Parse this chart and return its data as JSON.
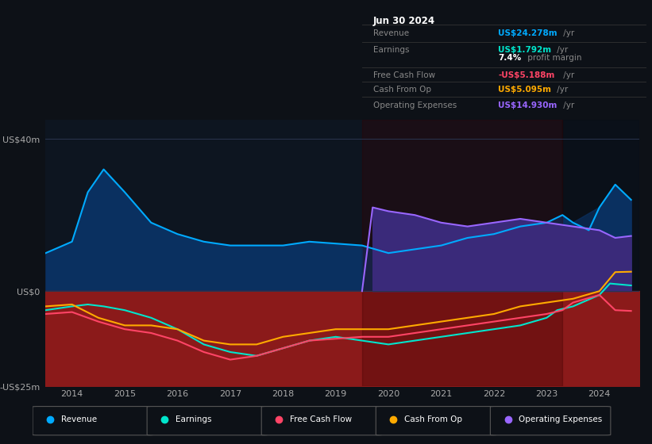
{
  "bg_color": "#0d1117",
  "plot_bg_color": "#0d1520",
  "grid_color": "#2a3550",
  "ylim": [
    -25,
    45
  ],
  "xlim_start": 2013.5,
  "xlim_end": 2024.75,
  "yticks": [
    -25,
    0,
    40
  ],
  "ytick_labels": [
    "-US$25m",
    "US$0",
    "US$40m"
  ],
  "xtick_years": [
    2014,
    2015,
    2016,
    2017,
    2018,
    2019,
    2020,
    2021,
    2022,
    2023,
    2024
  ],
  "revenue_color": "#00aaff",
  "revenue_fill": "#0a3060",
  "earnings_color": "#00e5cc",
  "freecashflow_color": "#ff4466",
  "cashfromop_color": "#ffaa00",
  "opex_color": "#9966ff",
  "opex_fill": "#3a2a7a",
  "red_fill": "#8b1a1a",
  "info_box_bg": "#000000",
  "info_box_title": "Jun 30 2024",
  "info_revenue_label": "Revenue",
  "info_revenue_value": "US$24.278m",
  "info_revenue_color": "#00aaff",
  "info_earnings_label": "Earnings",
  "info_earnings_value": "US$1.792m",
  "info_earnings_color": "#00e5cc",
  "info_margin_text": "7.4% profit margin",
  "info_fcf_label": "Free Cash Flow",
  "info_fcf_value": "-US$5.188m",
  "info_fcf_color": "#ff4466",
  "info_cashop_label": "Cash From Op",
  "info_cashop_value": "US$5.095m",
  "info_cashop_color": "#ffaa00",
  "info_opex_label": "Operating Expenses",
  "info_opex_value": "US$14.930m",
  "info_opex_color": "#9966ff",
  "revenue_x": [
    2013.5,
    2014.0,
    2014.3,
    2014.6,
    2015.0,
    2015.5,
    2016.0,
    2016.5,
    2017.0,
    2017.5,
    2018.0,
    2018.5,
    2019.0,
    2019.5,
    2020.0,
    2020.5,
    2021.0,
    2021.5,
    2022.0,
    2022.5,
    2023.0,
    2023.3,
    2023.5,
    2023.8,
    2024.0,
    2024.3,
    2024.6
  ],
  "revenue_y": [
    10,
    13,
    26,
    32,
    26,
    18,
    15,
    13,
    12,
    12,
    12,
    13,
    12.5,
    12,
    10,
    11,
    12,
    14,
    15,
    17,
    18,
    20,
    18,
    16,
    22,
    28,
    24
  ],
  "earnings_x": [
    2013.5,
    2014.0,
    2014.3,
    2014.6,
    2015.0,
    2015.5,
    2016.0,
    2016.5,
    2017.0,
    2017.5,
    2018.0,
    2018.5,
    2019.0,
    2019.5,
    2020.0,
    2020.5,
    2021.0,
    2021.5,
    2022.0,
    2022.5,
    2023.0,
    2023.2,
    2023.5,
    2024.0,
    2024.2,
    2024.6
  ],
  "earnings_y": [
    -5,
    -4,
    -3.5,
    -4,
    -5,
    -7,
    -10,
    -14,
    -16,
    -17,
    -15,
    -13,
    -12,
    -13,
    -14,
    -13,
    -12,
    -11,
    -10,
    -9,
    -7,
    -5,
    -4,
    -1,
    2,
    1.5
  ],
  "freecashflow_x": [
    2013.5,
    2014.0,
    2014.5,
    2015.0,
    2015.5,
    2016.0,
    2016.5,
    2017.0,
    2017.5,
    2018.0,
    2018.5,
    2019.0,
    2019.5,
    2020.0,
    2020.5,
    2021.0,
    2021.5,
    2022.0,
    2022.5,
    2023.0,
    2023.3,
    2023.5,
    2024.0,
    2024.3,
    2024.6
  ],
  "freecashflow_y": [
    -6,
    -5.5,
    -8,
    -10,
    -11,
    -13,
    -16,
    -18,
    -17,
    -15,
    -13,
    -12.5,
    -12,
    -12,
    -11,
    -10,
    -9,
    -8,
    -7,
    -6,
    -5,
    -3,
    -1,
    -5,
    -5.2
  ],
  "cashfromop_x": [
    2013.5,
    2014.0,
    2014.5,
    2015.0,
    2015.5,
    2016.0,
    2016.5,
    2017.0,
    2017.5,
    2018.0,
    2018.5,
    2019.0,
    2019.5,
    2020.0,
    2020.5,
    2021.0,
    2021.5,
    2022.0,
    2022.5,
    2023.0,
    2023.5,
    2024.0,
    2024.3,
    2024.6
  ],
  "cashfromop_y": [
    -4,
    -3.5,
    -7,
    -9,
    -9,
    -10,
    -13,
    -14,
    -14,
    -12,
    -11,
    -10,
    -10,
    -10,
    -9,
    -8,
    -7,
    -6,
    -4,
    -3,
    -2,
    0,
    5,
    5.1
  ],
  "opex_x": [
    2019.5,
    2019.7,
    2020.0,
    2020.5,
    2021.0,
    2021.5,
    2022.0,
    2022.5,
    2023.0,
    2023.5,
    2024.0,
    2024.3,
    2024.6
  ],
  "opex_y": [
    0,
    22,
    21,
    20,
    18,
    17,
    18,
    19,
    18,
    17,
    16,
    14,
    14.5
  ],
  "opex_region_start": 2019.5,
  "darker_region_start": 2023.3
}
